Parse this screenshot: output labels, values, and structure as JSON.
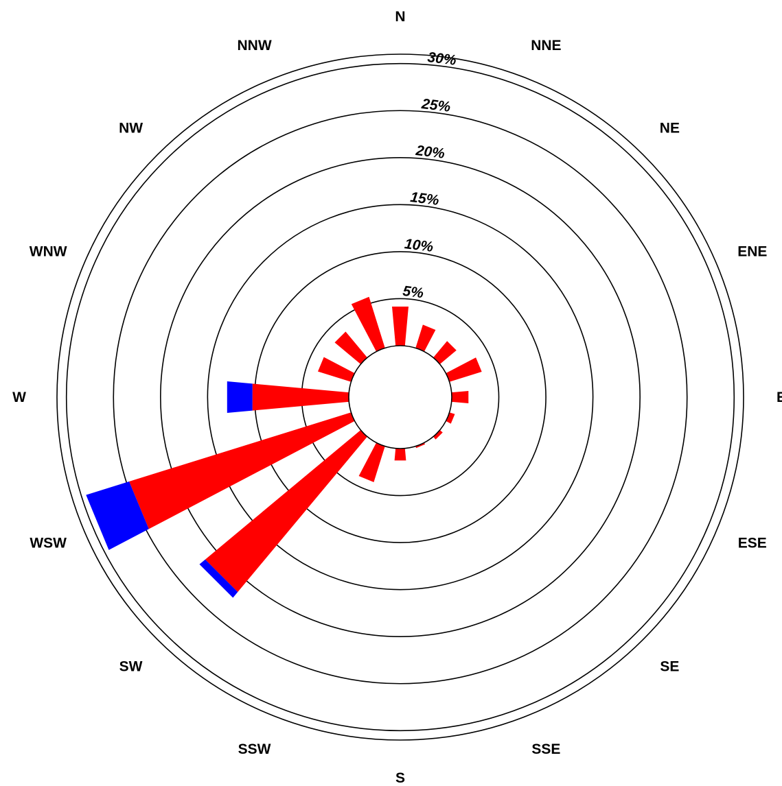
{
  "chart_data": {
    "type": "windrose",
    "title": "",
    "directions": [
      "N",
      "NNE",
      "NE",
      "ENE",
      "E",
      "ESE",
      "SE",
      "SSE",
      "S",
      "SSW",
      "SW",
      "WSW",
      "W",
      "WNW",
      "NW",
      "NNW"
    ],
    "rings": [
      5,
      10,
      15,
      20,
      25,
      30
    ],
    "ring_labels": [
      "5%",
      "10%",
      "15%",
      "20%",
      "25%",
      "30%"
    ],
    "rmax": 31,
    "series": [
      {
        "color": "#ff0000",
        "values": [
          4.2,
          2.6,
          2.3,
          3.6,
          1.8,
          0.6,
          0.4,
          0.2,
          1.3,
          4.0,
          21.5,
          24.7,
          10.3,
          3.7,
          3.6,
          5.7
        ]
      },
      {
        "color": "#0000ff",
        "values": [
          0,
          0,
          0,
          0,
          0,
          0,
          0,
          0,
          0,
          0,
          0.8,
          4.8,
          2.7,
          0,
          0,
          0
        ]
      }
    ]
  }
}
